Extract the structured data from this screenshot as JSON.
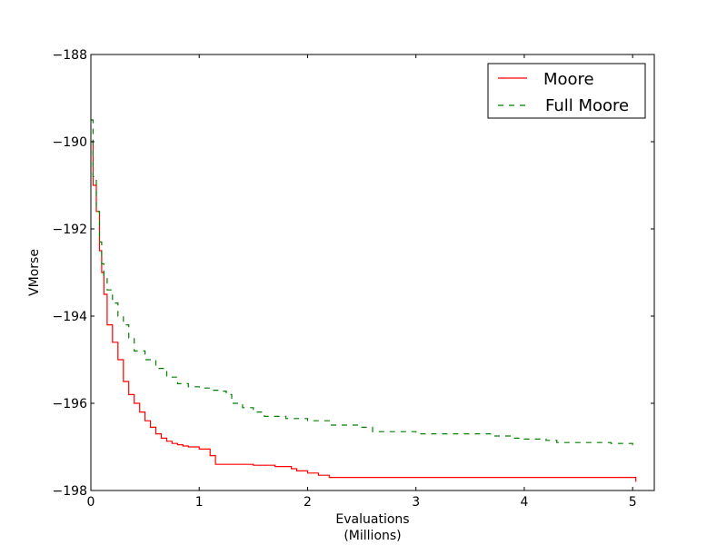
{
  "chart_data": {
    "type": "line",
    "title": "",
    "xlabel": [
      "Evaluations",
      "(Millions)"
    ],
    "ylabel": "VMorse",
    "xlim": [
      0,
      5.2
    ],
    "ylim": [
      -198,
      -188
    ],
    "xticks": [
      0,
      1,
      2,
      3,
      4,
      5
    ],
    "xtick_labels": [
      "0",
      "1",
      "2",
      "3",
      "4",
      "5"
    ],
    "yticks": [
      -198,
      -196,
      -194,
      -192,
      -190,
      -188
    ],
    "ytick_labels": [
      "−198",
      "−196",
      "−194",
      "−192",
      "−190",
      "−188"
    ],
    "grid": false,
    "legend_position": "top-right",
    "series": [
      {
        "name": "Moore",
        "color": "#ff0000",
        "dash": "solid",
        "x": [
          0,
          0.02,
          0.05,
          0.08,
          0.1,
          0.12,
          0.15,
          0.2,
          0.25,
          0.3,
          0.35,
          0.4,
          0.45,
          0.5,
          0.55,
          0.6,
          0.65,
          0.7,
          0.75,
          0.8,
          0.85,
          0.9,
          1.0,
          1.1,
          1.15,
          1.3,
          1.5,
          1.7,
          1.85,
          1.9,
          2.0,
          2.1,
          2.2,
          3.0,
          4.0,
          5.0,
          5.03
        ],
        "y": [
          -190.0,
          -191.0,
          -191.6,
          -192.5,
          -193.0,
          -193.5,
          -194.2,
          -194.6,
          -195.0,
          -195.5,
          -195.8,
          -196.0,
          -196.2,
          -196.4,
          -196.55,
          -196.7,
          -196.8,
          -196.87,
          -196.92,
          -196.95,
          -196.98,
          -197.0,
          -197.05,
          -197.2,
          -197.4,
          -197.4,
          -197.42,
          -197.45,
          -197.5,
          -197.55,
          -197.6,
          -197.65,
          -197.7,
          -197.7,
          -197.7,
          -197.7,
          -197.8
        ]
      },
      {
        "name": "Full Moore",
        "color": "#007f00",
        "dash": "dashed",
        "x": [
          0,
          0.02,
          0.05,
          0.08,
          0.1,
          0.12,
          0.15,
          0.2,
          0.25,
          0.3,
          0.35,
          0.4,
          0.5,
          0.6,
          0.7,
          0.8,
          0.9,
          1.0,
          1.1,
          1.2,
          1.25,
          1.3,
          1.4,
          1.5,
          1.6,
          1.8,
          2.0,
          2.2,
          2.5,
          2.6,
          3.0,
          3.5,
          3.7,
          3.9,
          4.0,
          4.2,
          4.3,
          4.8,
          5.0,
          5.03
        ],
        "y": [
          -189.5,
          -190.8,
          -191.6,
          -192.3,
          -192.8,
          -193.1,
          -193.4,
          -193.7,
          -194.0,
          -194.2,
          -194.5,
          -194.8,
          -195.0,
          -195.2,
          -195.4,
          -195.55,
          -195.62,
          -195.65,
          -195.7,
          -195.72,
          -195.8,
          -196.0,
          -196.1,
          -196.2,
          -196.3,
          -196.35,
          -196.4,
          -196.5,
          -196.55,
          -196.65,
          -196.7,
          -196.7,
          -196.75,
          -196.8,
          -196.82,
          -196.85,
          -196.9,
          -196.92,
          -196.95,
          -197.0
        ]
      }
    ]
  }
}
